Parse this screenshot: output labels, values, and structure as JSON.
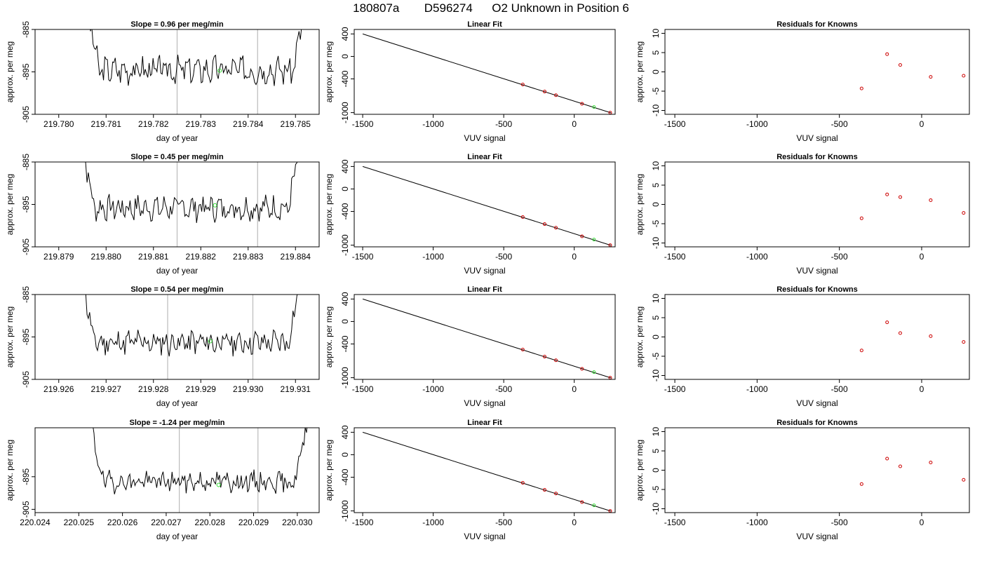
{
  "header": {
    "run": "180807a",
    "tank": "D596274",
    "desc": "O2 Unknown in Position  6"
  },
  "colors": {
    "line": "#000000",
    "known": "#cc0000",
    "unknown": "#33dd33",
    "vline": "#bbbbbb"
  },
  "chart_data": [
    {
      "type": "line",
      "title": "Slope =  0.96  per meg/min",
      "xlabel": "day of year",
      "ylabel": "approx. per meg",
      "xlim": [
        219.7795,
        219.7855
      ],
      "ylim": [
        -905,
        -885
      ],
      "xticks": [
        "219.780",
        "219.781",
        "219.782",
        "219.783",
        "219.784",
        "219.785"
      ],
      "xtick_values": [
        219.78,
        219.781,
        219.782,
        219.783,
        219.784,
        219.785
      ],
      "yticks": [
        "-885",
        "-895",
        "-905"
      ],
      "ytick_values": [
        -885,
        -895,
        -905
      ],
      "trace": {
        "x_start": 219.7806,
        "x_end": 219.7852,
        "baseline": -894.5,
        "amplitude": 2.6,
        "seed": 3
      },
      "vlines": [
        219.7825,
        219.7842
      ],
      "unknown_point": {
        "x": 219.7834,
        "y": -894.7
      }
    },
    {
      "type": "scatter",
      "title": "Linear Fit",
      "xlabel": "VUV signal",
      "ylabel": "approx. per meg",
      "xlim": [
        -1560,
        290
      ],
      "ylim": [
        -1030,
        480
      ],
      "xticks": [
        "-1500",
        "-1000",
        "-500",
        "0"
      ],
      "xtick_values": [
        -1500,
        -1000,
        -500,
        0
      ],
      "yticks": [
        "400",
        "0",
        "-400",
        "-1000"
      ],
      "ytick_values": [
        400,
        0,
        -400,
        -1000
      ],
      "fit_line": {
        "x": [
          -1500,
          260
        ],
        "y": [
          400,
          -1003
        ]
      },
      "knowns": {
        "x": [
          -365,
          -210,
          -130,
          55,
          255
        ],
        "y": [
          -500,
          -625,
          -690,
          -843,
          -1000
        ]
      },
      "unknown": {
        "x": 140,
        "y": -900
      }
    },
    {
      "type": "scatter",
      "title": "Residuals for Knowns",
      "xlabel": "VUV signal",
      "ylabel": "approx. per meg",
      "xlim": [
        -1560,
        290
      ],
      "ylim": [
        -11,
        11
      ],
      "xticks": [
        "-1500",
        "-1000",
        "-500",
        "0"
      ],
      "xtick_values": [
        -1500,
        -1000,
        -500,
        0
      ],
      "yticks": [
        "10",
        "5",
        "0",
        "-5",
        "-10"
      ],
      "ytick_values": [
        10,
        5,
        0,
        -5,
        -10
      ],
      "residuals": {
        "x": [
          -365,
          -210,
          -130,
          55,
          255
        ],
        "y": [
          -4.3,
          4.6,
          1.8,
          -1.3,
          -1.0
        ]
      }
    },
    {
      "type": "line",
      "title": "Slope =  0.45  per meg/min",
      "xlabel": "day of year",
      "ylabel": "approx. per meg",
      "xlim": [
        219.8785,
        219.8845
      ],
      "ylim": [
        -905,
        -885
      ],
      "xticks": [
        "219.879",
        "219.880",
        "219.881",
        "219.882",
        "219.883",
        "219.884"
      ],
      "xtick_values": [
        219.879,
        219.88,
        219.881,
        219.882,
        219.883,
        219.884
      ],
      "yticks": [
        "-885",
        "-895",
        "-905"
      ],
      "ytick_values": [
        -885,
        -895,
        -905
      ],
      "trace": {
        "x_start": 219.8795,
        "x_end": 219.8841,
        "baseline": -895.8,
        "amplitude": 2.4,
        "seed": 7
      },
      "vlines": [
        219.8815,
        219.8832
      ],
      "unknown_point": {
        "x": 219.8823,
        "y": -895.2
      }
    },
    {
      "type": "scatter",
      "title": "Linear Fit",
      "xlabel": "VUV signal",
      "ylabel": "approx. per meg",
      "xlim": [
        -1560,
        290
      ],
      "ylim": [
        -1030,
        480
      ],
      "xticks": [
        "-1500",
        "-1000",
        "-500",
        "0"
      ],
      "xtick_values": [
        -1500,
        -1000,
        -500,
        0
      ],
      "yticks": [
        "400",
        "0",
        "-400",
        "-1000"
      ],
      "ytick_values": [
        400,
        0,
        -400,
        -1000
      ],
      "fit_line": {
        "x": [
          -1500,
          260
        ],
        "y": [
          400,
          -1003
        ]
      },
      "knowns": {
        "x": [
          -365,
          -210,
          -130,
          55,
          255
        ],
        "y": [
          -500,
          -625,
          -690,
          -843,
          -1000
        ]
      },
      "unknown": {
        "x": 140,
        "y": -900
      }
    },
    {
      "type": "scatter",
      "title": "Residuals for Knowns",
      "xlabel": "VUV signal",
      "ylabel": "approx. per meg",
      "xlim": [
        -1560,
        290
      ],
      "ylim": [
        -11,
        11
      ],
      "xticks": [
        "-1500",
        "-1000",
        "-500",
        "0"
      ],
      "xtick_values": [
        -1500,
        -1000,
        -500,
        0
      ],
      "yticks": [
        "10",
        "5",
        "0",
        "-5",
        "-10"
      ],
      "ytick_values": [
        10,
        5,
        0,
        -5,
        -10
      ],
      "residuals": {
        "x": [
          -365,
          -210,
          -130,
          55,
          255
        ],
        "y": [
          -3.6,
          2.6,
          1.9,
          1.1,
          -2.2
        ]
      }
    },
    {
      "type": "line",
      "title": "Slope =  0.54  per meg/min",
      "xlabel": "day of year",
      "ylabel": "approx. per meg",
      "xlim": [
        219.9255,
        219.9315
      ],
      "ylim": [
        -905,
        -885
      ],
      "xticks": [
        "219.926",
        "219.927",
        "219.928",
        "219.929",
        "219.930",
        "219.931"
      ],
      "xtick_values": [
        219.926,
        219.927,
        219.928,
        219.929,
        219.93,
        219.931
      ],
      "yticks": [
        "-885",
        "-895",
        "-905"
      ],
      "ytick_values": [
        -885,
        -895,
        -905
      ],
      "trace": {
        "x_start": 219.9265,
        "x_end": 219.9311,
        "baseline": -896.3,
        "amplitude": 2.4,
        "seed": 11
      },
      "vlines": [
        219.9283,
        219.9301
      ],
      "unknown_point": {
        "x": 219.9292,
        "y": -896.0
      }
    },
    {
      "type": "scatter",
      "title": "Linear Fit",
      "xlabel": "VUV signal",
      "ylabel": "approx. per meg",
      "xlim": [
        -1560,
        290
      ],
      "ylim": [
        -1030,
        480
      ],
      "xticks": [
        "-1500",
        "-1000",
        "-500",
        "0"
      ],
      "xtick_values": [
        -1500,
        -1000,
        -500,
        0
      ],
      "yticks": [
        "400",
        "0",
        "-400",
        "-1000"
      ],
      "ytick_values": [
        400,
        0,
        -400,
        -1000
      ],
      "fit_line": {
        "x": [
          -1500,
          260
        ],
        "y": [
          400,
          -1003
        ]
      },
      "knowns": {
        "x": [
          -365,
          -210,
          -130,
          55,
          255
        ],
        "y": [
          -500,
          -625,
          -690,
          -843,
          -1000
        ]
      },
      "unknown": {
        "x": 140,
        "y": -900
      }
    },
    {
      "type": "scatter",
      "title": "Residuals for Knowns",
      "xlabel": "VUV signal",
      "ylabel": "approx. per meg",
      "xlim": [
        -1560,
        290
      ],
      "ylim": [
        -11,
        11
      ],
      "xticks": [
        "-1500",
        "-1000",
        "-500",
        "0"
      ],
      "xtick_values": [
        -1500,
        -1000,
        -500,
        0
      ],
      "yticks": [
        "10",
        "5",
        "0",
        "-5",
        "-10"
      ],
      "ytick_values": [
        10,
        5,
        0,
        -5,
        -10
      ],
      "residuals": {
        "x": [
          -365,
          -210,
          -130,
          55,
          255
        ],
        "y": [
          -3.5,
          3.8,
          1.0,
          0.2,
          -1.3
        ]
      }
    },
    {
      "type": "line",
      "title": "Slope =  -1.24  per meg/min",
      "xlabel": "day of year",
      "ylabel": "approx. per meg",
      "xlim": [
        220.024,
        220.0305
      ],
      "ylim": [
        -906,
        -880
      ],
      "xticks": [
        "220.024",
        "220.025",
        "220.026",
        "220.027",
        "220.028",
        "220.029",
        "220.030"
      ],
      "xtick_values": [
        220.024,
        220.025,
        220.026,
        220.027,
        220.028,
        220.029,
        220.03
      ],
      "yticks": [
        "-895",
        "-905"
      ],
      "ytick_values": [
        -895,
        -905
      ],
      "trace": {
        "x_start": 220.0253,
        "x_end": 220.0302,
        "baseline": -896.5,
        "amplitude": 2.6,
        "seed": 19
      },
      "vlines": [
        220.0273,
        220.0291
      ],
      "unknown_point": {
        "x": 220.0282,
        "y": -897.5
      }
    },
    {
      "type": "scatter",
      "title": "Linear Fit",
      "xlabel": "VUV signal",
      "ylabel": "approx. per meg",
      "xlim": [
        -1560,
        290
      ],
      "ylim": [
        -1030,
        480
      ],
      "xticks": [
        "-1500",
        "-1000",
        "-500",
        "0"
      ],
      "xtick_values": [
        -1500,
        -1000,
        -500,
        0
      ],
      "yticks": [
        "400",
        "0",
        "-400",
        "-1000"
      ],
      "ytick_values": [
        400,
        0,
        -400,
        -1000
      ],
      "fit_line": {
        "x": [
          -1500,
          260
        ],
        "y": [
          400,
          -1003
        ]
      },
      "knowns": {
        "x": [
          -365,
          -210,
          -130,
          55,
          255
        ],
        "y": [
          -500,
          -625,
          -690,
          -843,
          -1000
        ]
      },
      "unknown": {
        "x": 140,
        "y": -900
      }
    },
    {
      "type": "scatter",
      "title": "Residuals for Knowns",
      "xlabel": "VUV signal",
      "ylabel": "approx. per meg",
      "xlim": [
        -1560,
        290
      ],
      "ylim": [
        -11,
        11
      ],
      "xticks": [
        "-1500",
        "-1000",
        "-500",
        "0"
      ],
      "xtick_values": [
        -1500,
        -1000,
        -500,
        0
      ],
      "yticks": [
        "10",
        "5",
        "0",
        "-5",
        "-10"
      ],
      "ytick_values": [
        10,
        5,
        0,
        -5,
        -10
      ],
      "residuals": {
        "x": [
          -365,
          -210,
          -130,
          55,
          255
        ],
        "y": [
          -3.6,
          3.0,
          1.0,
          2.0,
          -2.5
        ]
      }
    }
  ]
}
